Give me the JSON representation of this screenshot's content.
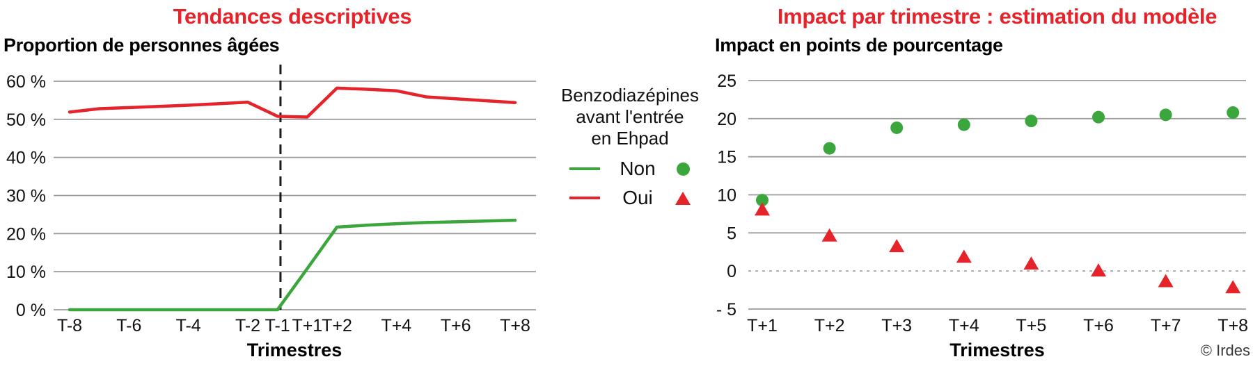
{
  "credit": "© Irdes",
  "colors": {
    "title_red": "#e5232a",
    "series_green": "#3aa63c",
    "series_red": "#e5232a",
    "gridline": "#9c9c9c",
    "zero_line": "#999999",
    "vline": "#1a1a1a",
    "text": "#111111"
  },
  "legend": {
    "title_lines": [
      "Benzodiazépines",
      "avant l'entrée",
      "en Ehpad"
    ],
    "items": [
      {
        "label": "Non",
        "color": "#3aa63c",
        "marker": "circle",
        "line": true
      },
      {
        "label": "Oui",
        "color": "#e5232a",
        "marker": "triangle",
        "line": true
      }
    ]
  },
  "chart_data": [
    {
      "type": "line",
      "title": "Tendances descriptives",
      "heading": "Proportion de personnes âgées",
      "xlabel": "Trimestres",
      "ylim": [
        0,
        60
      ],
      "grid": true,
      "y_ticks": [
        60,
        50,
        40,
        30,
        20,
        10,
        0
      ],
      "y_tick_labels": [
        "60 %",
        "50 %",
        "40 %",
        "30 %",
        "20 %",
        "10 %",
        "0 %"
      ],
      "x_quarters": [
        -8,
        -7,
        -6,
        -5,
        -4,
        -3,
        -2,
        -1,
        1,
        2,
        3,
        4,
        5,
        6,
        7,
        8
      ],
      "x_tick_quarters": [
        -8,
        -6,
        -4,
        -2,
        -1,
        1,
        2,
        4,
        6,
        8
      ],
      "x_tick_labels": [
        "T-8",
        "T-6",
        "T-4",
        "T-2",
        "T-1",
        "T+1",
        "T+2",
        "T+4",
        "T+6",
        "T+8"
      ],
      "vline": {
        "at": "T0 (entrée en Ehpad)",
        "style": "dashed"
      },
      "series": [
        {
          "name": "Non",
          "color": "#3aa63c",
          "values": [
            0,
            0,
            0,
            0,
            0,
            0,
            0,
            0,
            10.8,
            21.7,
            22.2,
            22.6,
            22.9,
            23.1,
            23.3,
            23.5
          ]
        },
        {
          "name": "Oui",
          "color": "#e5232a",
          "values": [
            51.9,
            52.8,
            53.1,
            53.4,
            53.7,
            54.1,
            54.5,
            50.8,
            50.6,
            58.2,
            57.9,
            57.5,
            55.9,
            55.4,
            54.9,
            54.4
          ]
        }
      ]
    },
    {
      "type": "scatter",
      "title": "Impact par trimestre : estimation du modèle",
      "heading": "Impact en points de pourcentage",
      "xlabel": "Trimestres",
      "ylim": [
        -5,
        25
      ],
      "grid": true,
      "zero_line_style": "dotted",
      "y_ticks": [
        25,
        20,
        15,
        10,
        5,
        0,
        -5
      ],
      "y_tick_labels": [
        "25",
        "20",
        "15",
        "10",
        "5",
        "0",
        "- 5"
      ],
      "categories": [
        "T+1",
        "T+2",
        "T+3",
        "T+4",
        "T+5",
        "T+6",
        "T+7",
        "T+8"
      ],
      "series": [
        {
          "name": "Non",
          "marker": "circle",
          "color": "#3aa63c",
          "values": [
            9.3,
            16.1,
            18.8,
            19.2,
            19.7,
            20.2,
            20.5,
            20.8
          ]
        },
        {
          "name": "Oui",
          "marker": "triangle",
          "color": "#e5232a",
          "values": [
            8.0,
            4.6,
            3.2,
            1.8,
            0.9,
            0.0,
            -1.4,
            -2.2
          ]
        }
      ]
    }
  ]
}
